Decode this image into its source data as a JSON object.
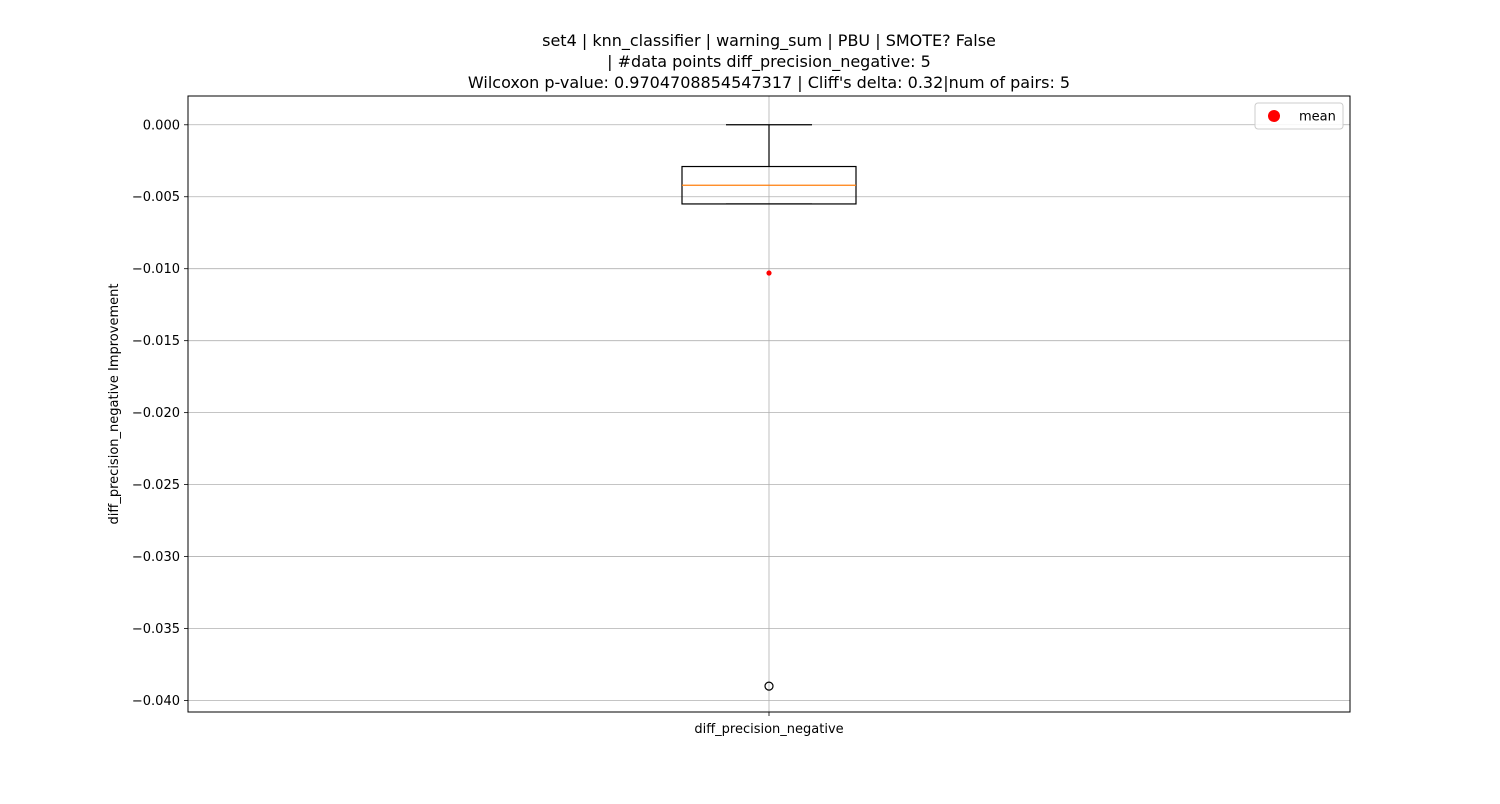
{
  "chart_data": {
    "type": "box",
    "title_lines": [
      "set4 | knn_classifier | warning_sum | PBU | SMOTE? False",
      "| #data points diff_precision_negative: 5",
      "Wilcoxon p-value: 0.9704708854547317 | Cliff's delta: 0.32|num of pairs: 5"
    ],
    "xlabel": "",
    "ylabel": "diff_precision_negative Improvement",
    "categories": [
      "diff_precision_negative"
    ],
    "ylim": [
      -0.0408,
      0.002
    ],
    "yticks": [
      0.0,
      -0.005,
      -0.01,
      -0.015,
      -0.02,
      -0.025,
      -0.03,
      -0.035,
      -0.04
    ],
    "ytick_labels": [
      "0.000",
      "−0.005",
      "−0.010",
      "−0.015",
      "−0.020",
      "−0.025",
      "−0.030",
      "−0.035",
      "−0.040"
    ],
    "grid": true,
    "legend": {
      "placement": "top-right",
      "entries": [
        {
          "label": "mean",
          "marker": "circle",
          "color": "#ff0000"
        }
      ]
    },
    "series": [
      {
        "stats": {
          "whisker_high": 0.0,
          "q3": -0.0029,
          "median": -0.0042,
          "q1": -0.0055,
          "whisker_low": -0.0055,
          "mean": -0.0103
        },
        "outliers": [
          -0.039
        ],
        "box_color": "#000000",
        "median_color": "#ff7f0e",
        "mean_color": "#ff0000"
      }
    ]
  }
}
